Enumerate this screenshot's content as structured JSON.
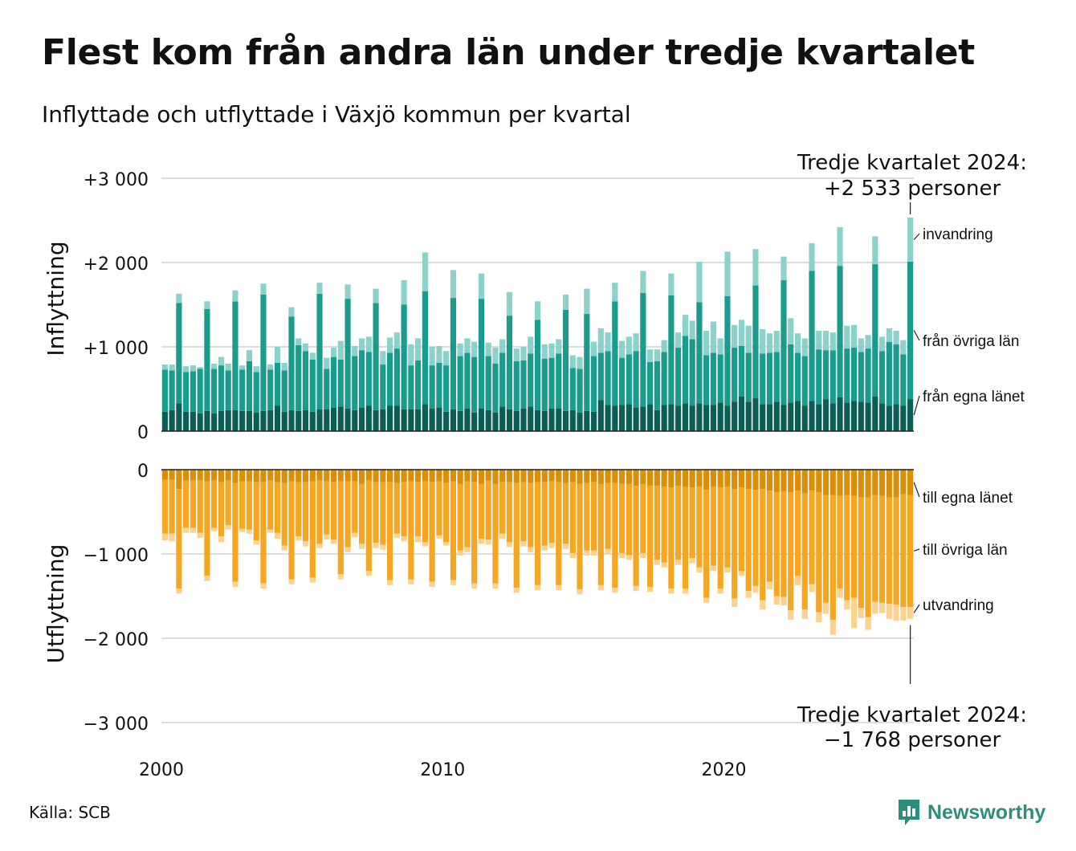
{
  "title": "Flest kom från andra län under tredje kvartalet",
  "subtitle": "Inflyttade och utflyttade i Växjö kommun per kvartal",
  "source": "Källa: SCB",
  "logo_text": "Newsworthy",
  "colors": {
    "in_own": "#0c5e55",
    "in_other": "#1a9b8c",
    "in_immig": "#8dd2ca",
    "out_own": "#d98e0c",
    "out_other": "#f5a623",
    "out_emig": "#fbd28f",
    "logo": "#2c8f7e"
  },
  "chart_data": {
    "type": "bar",
    "stacked": true,
    "x_start": "2000 Q1",
    "x_ticks": [
      "2000",
      "2010",
      "2020"
    ],
    "panels": [
      {
        "ylabel": "Inflyttning",
        "ylim": [
          0,
          3000
        ],
        "y_tick_labels": [
          "0",
          "+1 000",
          "+2 000",
          "+3 000"
        ],
        "series_labels": [
          "från egna länet",
          "från övriga län",
          "invandring"
        ],
        "annotation": [
          "Tredje kvartalet 2024:",
          "+2 533 personer"
        ],
        "quarters": [
          [
            230,
            500,
            60
          ],
          [
            250,
            470,
            70
          ],
          [
            330,
            1190,
            110
          ],
          [
            230,
            470,
            70
          ],
          [
            230,
            480,
            70
          ],
          [
            210,
            530,
            20
          ],
          [
            240,
            1210,
            90
          ],
          [
            210,
            530,
            60
          ],
          [
            240,
            540,
            100
          ],
          [
            250,
            470,
            80
          ],
          [
            250,
            1290,
            130
          ],
          [
            240,
            490,
            50
          ],
          [
            240,
            590,
            130
          ],
          [
            220,
            480,
            70
          ],
          [
            240,
            1380,
            130
          ],
          [
            250,
            480,
            60
          ],
          [
            300,
            510,
            190
          ],
          [
            230,
            490,
            90
          ],
          [
            250,
            1110,
            110
          ],
          [
            240,
            780,
            80
          ],
          [
            250,
            700,
            90
          ],
          [
            230,
            620,
            80
          ],
          [
            260,
            1370,
            130
          ],
          [
            260,
            480,
            130
          ],
          [
            280,
            600,
            110
          ],
          [
            290,
            560,
            220
          ],
          [
            270,
            1300,
            170
          ],
          [
            250,
            640,
            120
          ],
          [
            280,
            680,
            140
          ],
          [
            300,
            640,
            180
          ],
          [
            250,
            1270,
            170
          ],
          [
            260,
            530,
            160
          ],
          [
            300,
            630,
            180
          ],
          [
            300,
            680,
            190
          ],
          [
            260,
            1240,
            290
          ],
          [
            260,
            520,
            250
          ],
          [
            260,
            580,
            260
          ],
          [
            320,
            1340,
            460
          ],
          [
            270,
            510,
            220
          ],
          [
            280,
            530,
            200
          ],
          [
            230,
            550,
            170
          ],
          [
            260,
            1320,
            330
          ],
          [
            240,
            650,
            150
          ],
          [
            270,
            660,
            170
          ],
          [
            220,
            660,
            180
          ],
          [
            270,
            1300,
            300
          ],
          [
            250,
            640,
            160
          ],
          [
            220,
            580,
            190
          ],
          [
            290,
            640,
            160
          ],
          [
            260,
            1110,
            280
          ],
          [
            240,
            590,
            150
          ],
          [
            270,
            570,
            160
          ],
          [
            290,
            630,
            200
          ],
          [
            250,
            1070,
            220
          ],
          [
            240,
            620,
            170
          ],
          [
            270,
            600,
            170
          ],
          [
            270,
            650,
            170
          ],
          [
            240,
            1200,
            180
          ],
          [
            250,
            500,
            150
          ],
          [
            220,
            520,
            140
          ],
          [
            240,
            1150,
            300
          ],
          [
            230,
            660,
            170
          ],
          [
            370,
            560,
            290
          ],
          [
            310,
            640,
            220
          ],
          [
            300,
            1240,
            220
          ],
          [
            310,
            560,
            200
          ],
          [
            320,
            590,
            210
          ],
          [
            280,
            670,
            210
          ],
          [
            290,
            1350,
            260
          ],
          [
            320,
            500,
            150
          ],
          [
            250,
            580,
            140
          ],
          [
            310,
            630,
            140
          ],
          [
            320,
            1290,
            260
          ],
          [
            300,
            690,
            180
          ],
          [
            330,
            800,
            250
          ],
          [
            300,
            790,
            220
          ],
          [
            330,
            1200,
            480
          ],
          [
            310,
            590,
            290
          ],
          [
            310,
            620,
            370
          ],
          [
            340,
            570,
            190
          ],
          [
            300,
            1300,
            530
          ],
          [
            350,
            640,
            270
          ],
          [
            410,
            600,
            310
          ],
          [
            350,
            580,
            320
          ],
          [
            390,
            1340,
            430
          ],
          [
            320,
            600,
            290
          ],
          [
            320,
            610,
            230
          ],
          [
            350,
            590,
            250
          ],
          [
            310,
            1480,
            280
          ],
          [
            340,
            690,
            310
          ],
          [
            360,
            570,
            230
          ],
          [
            300,
            590,
            210
          ],
          [
            360,
            1540,
            330
          ],
          [
            320,
            650,
            220
          ],
          [
            380,
            580,
            230
          ],
          [
            330,
            630,
            210
          ],
          [
            400,
            1560,
            460
          ],
          [
            340,
            640,
            270
          ],
          [
            360,
            630,
            270
          ],
          [
            350,
            590,
            160
          ],
          [
            340,
            640,
            160
          ],
          [
            410,
            1570,
            330
          ],
          [
            330,
            620,
            170
          ],
          [
            300,
            760,
            160
          ],
          [
            320,
            710,
            160
          ],
          [
            300,
            610,
            170
          ],
          [
            380,
            1630,
            523
          ]
        ]
      },
      {
        "ylabel": "Utflyttning",
        "ylim": [
          -3000,
          0
        ],
        "y_tick_labels": [
          "0",
          "−1 000",
          "−2 000",
          "−3 000"
        ],
        "series_labels": [
          "till egna länet",
          "till övriga län",
          "utvandring"
        ],
        "annotation": [
          "Tredje kvartalet 2024:",
          "−1 768 personer"
        ],
        "quarters": [
          [
            120,
            640,
            80
          ],
          [
            120,
            640,
            90
          ],
          [
            230,
            1180,
            60
          ],
          [
            130,
            560,
            60
          ],
          [
            130,
            560,
            60
          ],
          [
            130,
            620,
            60
          ],
          [
            140,
            1120,
            60
          ],
          [
            130,
            560,
            40
          ],
          [
            150,
            640,
            70
          ],
          [
            130,
            530,
            50
          ],
          [
            160,
            1170,
            60
          ],
          [
            140,
            560,
            40
          ],
          [
            140,
            570,
            50
          ],
          [
            150,
            690,
            50
          ],
          [
            150,
            1200,
            60
          ],
          [
            130,
            580,
            40
          ],
          [
            150,
            600,
            70
          ],
          [
            160,
            740,
            60
          ],
          [
            140,
            1160,
            60
          ],
          [
            150,
            640,
            50
          ],
          [
            150,
            700,
            60
          ],
          [
            140,
            1140,
            60
          ],
          [
            130,
            750,
            50
          ],
          [
            140,
            630,
            60
          ],
          [
            150,
            680,
            50
          ],
          [
            140,
            1100,
            60
          ],
          [
            140,
            780,
            60
          ],
          [
            140,
            610,
            50
          ],
          [
            170,
            710,
            60
          ],
          [
            130,
            1070,
            60
          ],
          [
            150,
            720,
            60
          ],
          [
            150,
            740,
            60
          ],
          [
            150,
            1160,
            60
          ],
          [
            160,
            600,
            50
          ],
          [
            150,
            640,
            60
          ],
          [
            140,
            1160,
            60
          ],
          [
            150,
            640,
            70
          ],
          [
            140,
            720,
            50
          ],
          [
            150,
            1180,
            60
          ],
          [
            140,
            640,
            40
          ],
          [
            160,
            700,
            40
          ],
          [
            140,
            1170,
            60
          ],
          [
            170,
            790,
            60
          ],
          [
            140,
            780,
            60
          ],
          [
            150,
            1200,
            60
          ],
          [
            170,
            650,
            60
          ],
          [
            130,
            700,
            60
          ],
          [
            170,
            1180,
            60
          ],
          [
            150,
            610,
            60
          ],
          [
            150,
            710,
            60
          ],
          [
            160,
            1240,
            60
          ],
          [
            150,
            700,
            60
          ],
          [
            160,
            760,
            60
          ],
          [
            150,
            1220,
            60
          ],
          [
            150,
            750,
            60
          ],
          [
            140,
            730,
            60
          ],
          [
            150,
            1220,
            60
          ],
          [
            160,
            720,
            60
          ],
          [
            150,
            840,
            60
          ],
          [
            170,
            1250,
            60
          ],
          [
            160,
            800,
            60
          ],
          [
            150,
            810,
            60
          ],
          [
            170,
            1200,
            60
          ],
          [
            160,
            780,
            60
          ],
          [
            160,
            1240,
            60
          ],
          [
            170,
            820,
            60
          ],
          [
            170,
            840,
            60
          ],
          [
            190,
            1190,
            60
          ],
          [
            170,
            820,
            60
          ],
          [
            190,
            1200,
            60
          ],
          [
            190,
            880,
            60
          ],
          [
            200,
            900,
            60
          ],
          [
            210,
            1200,
            60
          ],
          [
            190,
            880,
            60
          ],
          [
            200,
            1210,
            60
          ],
          [
            210,
            840,
            60
          ],
          [
            200,
            960,
            60
          ],
          [
            240,
            1280,
            60
          ],
          [
            200,
            940,
            60
          ],
          [
            210,
            1200,
            60
          ],
          [
            200,
            960,
            60
          ],
          [
            230,
            1300,
            100
          ],
          [
            210,
            990,
            60
          ],
          [
            230,
            1210,
            80
          ],
          [
            240,
            1140,
            80
          ],
          [
            230,
            1320,
            110
          ],
          [
            250,
            1080,
            90
          ],
          [
            270,
            1230,
            100
          ],
          [
            260,
            1250,
            100
          ],
          [
            270,
            1400,
            110
          ],
          [
            250,
            1010,
            110
          ],
          [
            280,
            1380,
            110
          ],
          [
            250,
            1110,
            90
          ],
          [
            270,
            1420,
            120
          ],
          [
            300,
            1280,
            130
          ],
          [
            300,
            1480,
            180
          ],
          [
            310,
            1100,
            110
          ],
          [
            300,
            1250,
            110
          ],
          [
            310,
            1210,
            360
          ],
          [
            330,
            1310,
            120
          ],
          [
            330,
            1420,
            150
          ],
          [
            300,
            1270,
            140
          ],
          [
            310,
            1270,
            120
          ],
          [
            330,
            1260,
            180
          ],
          [
            330,
            1270,
            190
          ],
          [
            290,
            1340,
            160
          ],
          [
            300,
            1330,
            138
          ]
        ]
      }
    ]
  }
}
